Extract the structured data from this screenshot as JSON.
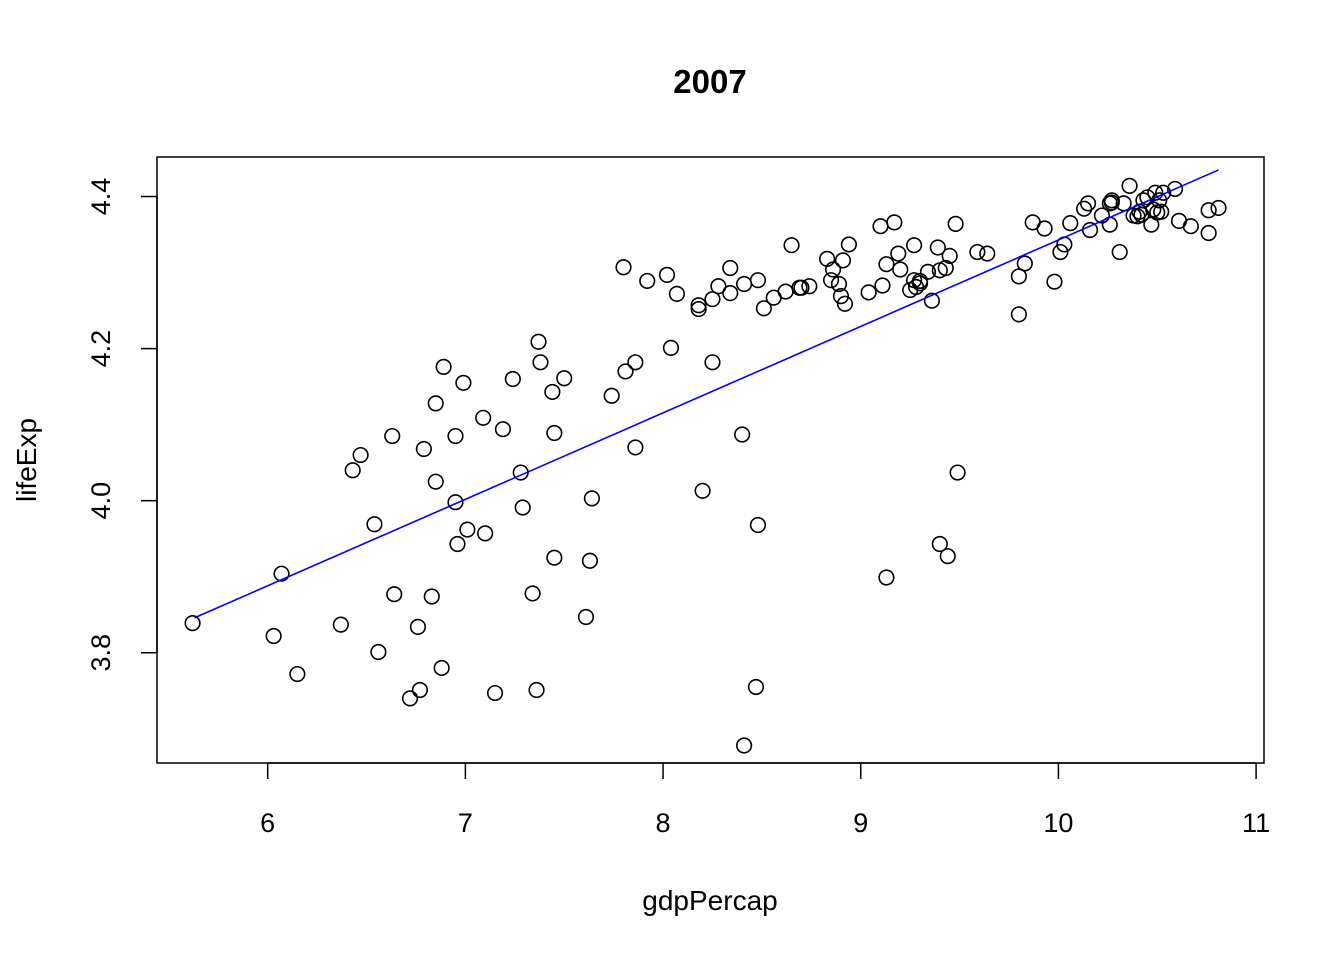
{
  "chart_data": {
    "type": "scatter",
    "title": "2007",
    "xlabel": "gdpPercap",
    "ylabel": "lifeExp",
    "xlim": [
      5.44,
      11.04
    ],
    "ylim": [
      3.655,
      4.452
    ],
    "xticks": [
      6,
      7,
      8,
      9,
      10,
      11
    ],
    "yticks": [
      3.8,
      4.0,
      4.2,
      4.4
    ],
    "xtick_labels": [
      "6",
      "7",
      "8",
      "9",
      "10",
      "11"
    ],
    "ytick_labels": [
      "3.8",
      "4.0",
      "4.2",
      "4.4"
    ],
    "grid": false,
    "legend": "none",
    "point_color": "#000000",
    "fit_color": "#0000ff",
    "fit_line": {
      "x": [
        5.63,
        10.81
      ],
      "y": [
        3.846,
        4.435
      ]
    },
    "points": {
      "x": [
        5.62,
        6.03,
        6.07,
        6.15,
        6.37,
        6.43,
        6.47,
        6.54,
        6.56,
        6.63,
        6.64,
        6.72,
        6.76,
        6.77,
        6.79,
        6.83,
        6.85,
        6.85,
        6.88,
        6.89,
        6.95,
        6.95,
        6.96,
        6.99,
        7.01,
        7.09,
        7.1,
        7.15,
        7.19,
        7.24,
        7.28,
        7.29,
        7.34,
        7.36,
        7.37,
        7.38,
        7.44,
        7.45,
        7.45,
        7.5,
        7.61,
        7.63,
        7.64,
        7.74,
        7.8,
        7.81,
        7.86,
        7.86,
        7.92,
        8.02,
        8.04,
        8.07,
        8.18,
        8.18,
        8.2,
        8.25,
        8.25,
        8.28,
        8.34,
        8.34,
        8.4,
        8.41,
        8.41,
        8.47,
        8.48,
        8.48,
        8.51,
        8.56,
        8.62,
        8.65,
        8.69,
        8.7,
        8.74,
        8.83,
        8.85,
        8.86,
        8.89,
        8.9,
        8.91,
        8.92,
        8.94,
        9.04,
        9.1,
        9.11,
        9.13,
        9.13,
        9.17,
        9.19,
        9.2,
        9.25,
        9.27,
        9.27,
        9.28,
        9.3,
        9.3,
        9.34,
        9.36,
        9.39,
        9.4,
        9.4,
        9.43,
        9.44,
        9.45,
        9.48,
        9.49,
        9.59,
        9.64,
        9.8,
        9.8,
        9.83,
        9.87,
        9.93,
        9.98,
        10.01,
        10.03,
        10.06,
        10.13,
        10.15,
        10.16,
        10.22,
        10.26,
        10.26,
        10.27,
        10.27,
        10.31,
        10.33,
        10.36,
        10.38,
        10.4,
        10.41,
        10.42,
        10.43,
        10.45,
        10.47,
        10.48,
        10.49,
        10.5,
        10.51,
        10.52,
        10.53,
        10.59,
        10.61,
        10.67,
        10.76,
        10.76,
        10.81
      ],
      "y": [
        3.839,
        3.822,
        3.904,
        3.772,
        3.837,
        4.04,
        4.06,
        3.969,
        3.801,
        4.085,
        3.877,
        3.74,
        3.834,
        3.751,
        4.068,
        3.874,
        4.025,
        4.128,
        3.78,
        4.176,
        4.085,
        3.998,
        3.943,
        4.155,
        3.962,
        4.109,
        3.957,
        3.747,
        4.094,
        4.16,
        4.037,
        3.991,
        3.878,
        3.751,
        4.209,
        4.182,
        4.143,
        4.089,
        3.925,
        4.161,
        3.847,
        3.921,
        4.003,
        4.138,
        4.307,
        4.17,
        4.182,
        4.07,
        4.289,
        4.297,
        4.201,
        4.272,
        4.257,
        4.252,
        4.013,
        4.265,
        4.182,
        4.282,
        4.306,
        4.273,
        4.087,
        4.285,
        3.678,
        3.755,
        3.968,
        4.29,
        4.253,
        4.267,
        4.275,
        4.336,
        4.28,
        4.28,
        4.282,
        4.318,
        4.29,
        4.304,
        4.285,
        4.269,
        4.316,
        4.259,
        4.337,
        4.274,
        4.361,
        4.283,
        3.899,
        4.311,
        4.366,
        4.325,
        4.304,
        4.277,
        4.336,
        4.29,
        4.281,
        4.289,
        4.286,
        4.301,
        4.263,
        4.333,
        4.303,
        3.943,
        4.306,
        3.927,
        4.322,
        4.364,
        4.037,
        4.327,
        4.325,
        4.245,
        4.295,
        4.312,
        4.366,
        4.358,
        4.288,
        4.327,
        4.337,
        4.365,
        4.384,
        4.391,
        4.356,
        4.375,
        4.391,
        4.363,
        4.395,
        4.392,
        4.327,
        4.391,
        4.414,
        4.375,
        4.374,
        4.38,
        4.376,
        4.395,
        4.399,
        4.363,
        4.383,
        4.405,
        4.379,
        4.395,
        4.38,
        4.405,
        4.41,
        4.368,
        4.361,
        4.352,
        4.382,
        4.385
      ]
    }
  }
}
